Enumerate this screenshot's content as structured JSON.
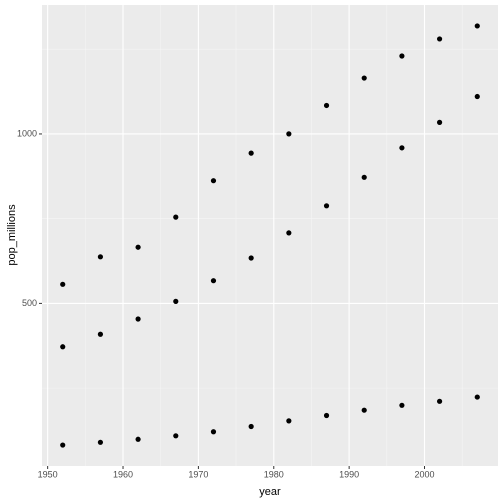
{
  "chart_data": {
    "type": "scatter",
    "x_label": "year",
    "y_label": "pop_millions",
    "x": [
      1952,
      1957,
      1962,
      1967,
      1972,
      1977,
      1982,
      1987,
      1992,
      1997,
      2002,
      2007
    ],
    "series": [
      {
        "color": "#000000",
        "values": [
          556.26,
          637.41,
          665.77,
          754.55,
          862.03,
          943.46,
          1000.28,
          1084.04,
          1164.97,
          1230.08,
          1280.4,
          1318.68
        ]
      },
      {
        "color": "#000000",
        "values": [
          372.0,
          409.0,
          454.0,
          506.0,
          567.0,
          634.0,
          708.0,
          788.0,
          872.0,
          959.0,
          1034.17,
          1110.4
        ]
      },
      {
        "color": "#000000",
        "values": [
          82.05,
          90.12,
          99.03,
          109.34,
          121.28,
          136.73,
          153.34,
          169.28,
          184.82,
          199.28,
          211.06,
          223.55
        ]
      }
    ],
    "xlim": [
      1949.25,
      2009.75
    ],
    "xticks": [
      1950,
      1960,
      1970,
      1980,
      1990,
      2000
    ],
    "ylim": [
      20.2,
      1380.5
    ],
    "yticks": [
      500,
      1000
    ],
    "grid": true
  }
}
